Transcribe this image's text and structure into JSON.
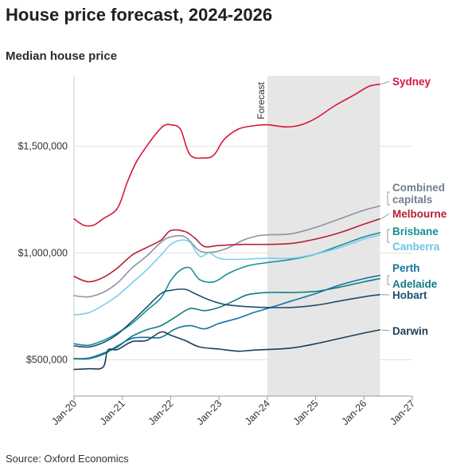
{
  "title": "House price forecast, 2024-2026",
  "subtitle": "Median house price",
  "source": "Source: Oxford Economics",
  "chart_data": {
    "type": "line",
    "title": "House price forecast, 2024-2026",
    "subtitle": "Median house price",
    "xlabel": "",
    "ylabel": "",
    "x_ticks": [
      "Jan-20",
      "Jan-21",
      "Jan-22",
      "Jan-23",
      "Jan-24",
      "Jan-25",
      "Jan-26",
      "Jan-27"
    ],
    "y_ticks": [
      {
        "value": 500000,
        "label": "$500,000"
      },
      {
        "value": 1000000,
        "label": "$1,000,000"
      },
      {
        "value": 1500000,
        "label": "$1,500,000"
      }
    ],
    "xlim": [
      2020.0,
      2027.0
    ],
    "ylim": [
      330000,
      1830000
    ],
    "grid": "horizontal",
    "forecast": {
      "start": 2024.0,
      "end": 2026.33,
      "label": "Forecast",
      "color": "#e6e6e6"
    },
    "legend": "direct labels at right",
    "series": [
      {
        "name": "Sydney",
        "color": "#d8163a",
        "x": [
          2020.0,
          2020.2,
          2020.4,
          2020.6,
          2020.9,
          2021.1,
          2021.3,
          2021.6,
          2021.8,
          2021.9,
          2022.0,
          2022.2,
          2022.4,
          2022.7,
          2022.9,
          2023.1,
          2023.4,
          2023.7,
          2024.0,
          2024.4,
          2024.7,
          2025.0,
          2025.4,
          2025.8,
          2026.1,
          2026.33
        ],
        "y": [
          1160000,
          1130000,
          1130000,
          1160000,
          1210000,
          1330000,
          1430000,
          1530000,
          1585000,
          1600000,
          1600000,
          1580000,
          1460000,
          1445000,
          1460000,
          1530000,
          1580000,
          1595000,
          1600000,
          1590000,
          1600000,
          1630000,
          1690000,
          1740000,
          1780000,
          1790000
        ]
      },
      {
        "name": "Combined capitals",
        "color": "#8a94a3",
        "x": [
          2020.0,
          2020.3,
          2020.6,
          2020.9,
          2021.2,
          2021.5,
          2021.8,
          2022.0,
          2022.3,
          2022.6,
          2022.9,
          2023.2,
          2023.5,
          2023.8,
          2024.0,
          2024.5,
          2025.0,
          2025.5,
          2026.0,
          2026.33
        ],
        "y": [
          800000,
          795000,
          815000,
          860000,
          930000,
          985000,
          1050000,
          1075000,
          1075000,
          1010000,
          1005000,
          1025000,
          1060000,
          1080000,
          1085000,
          1090000,
          1120000,
          1160000,
          1200000,
          1220000
        ]
      },
      {
        "name": "Melbourne",
        "color": "#b51f34",
        "x": [
          2020.0,
          2020.3,
          2020.6,
          2020.9,
          2021.2,
          2021.5,
          2021.8,
          2022.0,
          2022.3,
          2022.5,
          2022.7,
          2023.0,
          2023.5,
          2024.0,
          2024.5,
          2025.0,
          2025.5,
          2026.0,
          2026.33
        ],
        "y": [
          890000,
          865000,
          885000,
          930000,
          990000,
          1025000,
          1060000,
          1105000,
          1100000,
          1070000,
          1030000,
          1035000,
          1040000,
          1040000,
          1045000,
          1065000,
          1095000,
          1135000,
          1160000
        ]
      },
      {
        "name": "Brisbane",
        "color": "#178d96",
        "x": [
          2020.0,
          2020.3,
          2020.6,
          2020.9,
          2021.2,
          2021.5,
          2021.8,
          2022.0,
          2022.2,
          2022.4,
          2022.6,
          2022.9,
          2023.2,
          2023.6,
          2024.0,
          2024.5,
          2025.0,
          2025.5,
          2026.0,
          2026.33
        ],
        "y": [
          575000,
          568000,
          590000,
          625000,
          670000,
          730000,
          790000,
          870000,
          920000,
          930000,
          875000,
          865000,
          905000,
          940000,
          955000,
          970000,
          995000,
          1035000,
          1075000,
          1095000
        ]
      },
      {
        "name": "Canberra",
        "color": "#7ccdec",
        "x": [
          2020.0,
          2020.3,
          2020.6,
          2020.9,
          2021.2,
          2021.5,
          2021.8,
          2022.0,
          2022.2,
          2022.4,
          2022.6,
          2022.8,
          2023.0,
          2023.3,
          2024.0,
          2024.5,
          2025.0,
          2025.5,
          2026.0,
          2026.33
        ],
        "y": [
          710000,
          720000,
          755000,
          800000,
          860000,
          920000,
          990000,
          1040000,
          1060000,
          1050000,
          985000,
          1000000,
          975000,
          970000,
          975000,
          975000,
          995000,
          1025000,
          1065000,
          1085000
        ]
      },
      {
        "name": "Perth",
        "color": "#1573a4",
        "x": [
          2020.0,
          2020.3,
          2020.6,
          2020.9,
          2021.2,
          2021.5,
          2021.8,
          2022.1,
          2022.4,
          2022.7,
          2023.0,
          2023.4,
          2023.7,
          2024.0,
          2024.5,
          2025.0,
          2025.5,
          2026.0,
          2026.33
        ],
        "y": [
          505000,
          505000,
          525000,
          565000,
          600000,
          605000,
          605000,
          645000,
          660000,
          645000,
          670000,
          695000,
          720000,
          740000,
          775000,
          810000,
          850000,
          880000,
          895000
        ]
      },
      {
        "name": "Adelaide",
        "color": "#107b82",
        "x": [
          2020.0,
          2020.3,
          2020.6,
          2020.9,
          2021.2,
          2021.5,
          2021.8,
          2022.1,
          2022.4,
          2022.7,
          2023.0,
          2023.3,
          2023.6,
          2024.0,
          2024.5,
          2025.0,
          2025.5,
          2026.0,
          2026.33
        ],
        "y": [
          505000,
          508000,
          530000,
          560000,
          610000,
          640000,
          660000,
          700000,
          740000,
          730000,
          745000,
          775000,
          805000,
          815000,
          815000,
          820000,
          840000,
          865000,
          880000
        ]
      },
      {
        "name": "Hobart",
        "color": "#1b4e6d",
        "x": [
          2020.0,
          2020.3,
          2020.6,
          2020.9,
          2021.2,
          2021.5,
          2021.8,
          2022.0,
          2022.3,
          2022.5,
          2022.8,
          2023.1,
          2023.5,
          2024.0,
          2024.5,
          2025.0,
          2025.5,
          2026.0,
          2026.33
        ],
        "y": [
          565000,
          560000,
          580000,
          620000,
          680000,
          745000,
          810000,
          825000,
          830000,
          810000,
          780000,
          760000,
          750000,
          745000,
          745000,
          755000,
          775000,
          795000,
          805000
        ]
      },
      {
        "name": "Darwin",
        "color": "#1d3d55",
        "x": [
          2020.0,
          2020.3,
          2020.6,
          2020.7,
          2020.9,
          2021.2,
          2021.5,
          2021.8,
          2022.0,
          2022.3,
          2022.6,
          2023.0,
          2023.4,
          2023.7,
          2024.0,
          2024.5,
          2025.0,
          2025.5,
          2026.0,
          2026.33
        ],
        "y": [
          455000,
          458000,
          465000,
          545000,
          548000,
          585000,
          590000,
          630000,
          615000,
          590000,
          560000,
          550000,
          540000,
          545000,
          548000,
          555000,
          575000,
          600000,
          625000,
          640000
        ]
      }
    ]
  },
  "labels": [
    {
      "key": "Sydney",
      "lines": [
        "Sydney"
      ],
      "color": "#d8163a"
    },
    {
      "key": "Combined capitals",
      "lines": [
        "Combined",
        "capitals"
      ],
      "color": "#737e8c"
    },
    {
      "key": "Melbourne",
      "lines": [
        "Melbourne"
      ],
      "color": "#b51f34"
    },
    {
      "key": "Brisbane",
      "lines": [
        "Brisbane"
      ],
      "color": "#178d96"
    },
    {
      "key": "Canberra",
      "lines": [
        "Canberra"
      ],
      "color": "#6bc4e8"
    },
    {
      "key": "Perth",
      "lines": [
        "Perth"
      ],
      "color": "#1573a4"
    },
    {
      "key": "Adelaide",
      "lines": [
        "Adelaide"
      ],
      "color": "#107b82"
    },
    {
      "key": "Hobart",
      "lines": [
        "Hobart"
      ],
      "color": "#1b4e6d"
    },
    {
      "key": "Darwin",
      "lines": [
        "Darwin"
      ],
      "color": "#1d3d55"
    }
  ]
}
